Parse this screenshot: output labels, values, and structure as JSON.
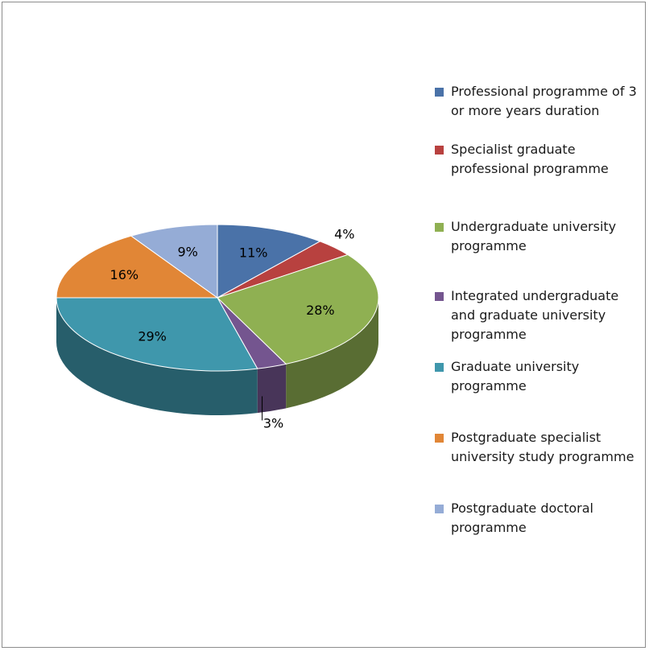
{
  "chart_data": {
    "type": "pie",
    "three_d": true,
    "legend_position": "right",
    "slices": [
      {
        "label": "Professional programme of 3 or more years duration",
        "value": 11,
        "display": "11%",
        "color": "#4a72a8"
      },
      {
        "label": "Specialist graduate professional programme",
        "value": 4,
        "display": "4%",
        "color": "#b8413f"
      },
      {
        "label": "Undergraduate university programme",
        "value": 28,
        "display": "28%",
        "color": "#8fb052"
      },
      {
        "label": "Integrated undergraduate and graduate university programme",
        "value": 3,
        "display": "3%",
        "color": "#74558f"
      },
      {
        "label": "Graduate university programme",
        "value": 29,
        "display": "29%",
        "color": "#3f97ac"
      },
      {
        "label": "Postgraduate specialist university study programme",
        "value": 16,
        "display": "16%",
        "color": "#e18636"
      },
      {
        "label": "Postgraduate doctoral programme",
        "value": 9,
        "display": "9%",
        "color": "#95acd6"
      }
    ]
  }
}
